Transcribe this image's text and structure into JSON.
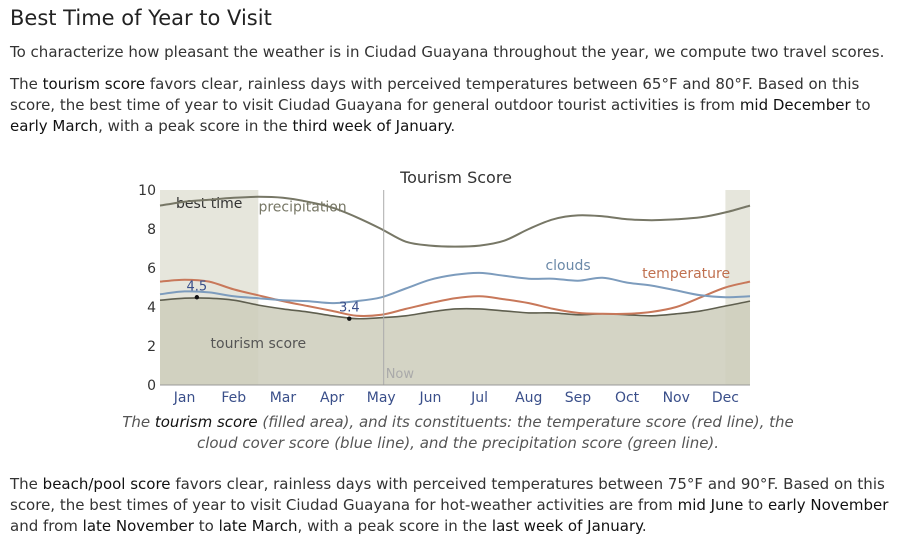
{
  "heading": "Best Time of Year to Visit",
  "intro": "To characterize how pleasant the weather is in Ciudad Guayana throughout the year, we compute two travel scores.",
  "tourism_paragraph": {
    "t1": "The ",
    "h1": "tourism score",
    "t2": " favors clear, rainless days with perceived temperatures between 65°F and 80°F. Based on this score, the best time of year to visit Ciudad Guayana for general outdoor tourist activities is from ",
    "h2": "mid December",
    "t3": " to ",
    "h3": "early March",
    "t4": ", with a peak score in the ",
    "h4": "third week of January",
    "t5": "."
  },
  "caption": {
    "t1": "The ",
    "h1": "tourism score",
    "t2": " (filled area), and its constituents: the temperature score (red line), the cloud cover score (blue line), and the precipitation score (green line)."
  },
  "beach_paragraph": {
    "t1": "The ",
    "h1": "beach/pool score",
    "t2": " favors clear, rainless days with perceived temperatures between 75°F and 90°F. Based on this score, the best times of year to visit Ciudad Guayana for hot-weather activities are from ",
    "h2": "mid June",
    "t3": " to ",
    "h3": "early November",
    "t4": " and from ",
    "h4": "late November",
    "t5": " to ",
    "h5": "late March",
    "t6": ", with a peak score in the ",
    "h6": "last week of January",
    "t7": "."
  },
  "chart_data": {
    "type": "area",
    "title": "Tourism Score",
    "x_type": "month-of-year",
    "x_ticks": [
      "Jan",
      "Feb",
      "Mar",
      "Apr",
      "May",
      "Jun",
      "Jul",
      "Aug",
      "Sep",
      "Oct",
      "Nov",
      "Dec"
    ],
    "ylim": [
      0,
      10
    ],
    "y_ticks": [
      0,
      2,
      4,
      6,
      8,
      10
    ],
    "x": [
      0,
      0.5,
      1,
      1.5,
      2,
      2.5,
      3,
      3.5,
      4,
      4.5,
      5,
      5.5,
      6,
      6.5,
      7,
      7.5,
      8,
      8.5,
      9,
      9.5,
      10,
      10.5,
      11,
      11.5,
      12
    ],
    "series": [
      {
        "name": "tourism score",
        "style": "filled-area",
        "color": "#cdcdbb",
        "values": [
          4.35,
          4.45,
          4.45,
          4.35,
          4.1,
          3.9,
          3.75,
          3.55,
          3.4,
          3.45,
          3.55,
          3.75,
          3.9,
          3.9,
          3.8,
          3.7,
          3.7,
          3.6,
          3.65,
          3.6,
          3.55,
          3.65,
          3.8,
          4.05,
          4.3
        ]
      },
      {
        "name": "temperature",
        "style": "line",
        "color": "#c8785a",
        "values": [
          5.3,
          5.4,
          5.3,
          4.9,
          4.6,
          4.3,
          4.05,
          3.8,
          3.55,
          3.6,
          3.9,
          4.2,
          4.45,
          4.55,
          4.4,
          4.2,
          3.9,
          3.7,
          3.65,
          3.65,
          3.75,
          4.0,
          4.5,
          5.0,
          5.3
        ]
      },
      {
        "name": "clouds",
        "style": "line",
        "color": "#7d9cbd",
        "values": [
          4.65,
          4.8,
          4.75,
          4.55,
          4.45,
          4.35,
          4.3,
          4.2,
          4.3,
          4.5,
          4.95,
          5.4,
          5.65,
          5.75,
          5.6,
          5.45,
          5.45,
          5.35,
          5.5,
          5.25,
          5.1,
          4.85,
          4.6,
          4.5,
          4.55
        ]
      },
      {
        "name": "precipitation",
        "style": "line",
        "color": "#777766",
        "values": [
          9.2,
          9.4,
          9.5,
          9.6,
          9.65,
          9.6,
          9.4,
          9.1,
          8.6,
          8.0,
          7.35,
          7.15,
          7.1,
          7.15,
          7.4,
          8.0,
          8.5,
          8.7,
          8.65,
          8.5,
          8.45,
          8.5,
          8.6,
          8.85,
          9.2
        ]
      }
    ],
    "highlight_bands": [
      {
        "label": "best time",
        "start": 0,
        "end": 2.0
      },
      {
        "label": "",
        "start": 11.5,
        "end": 12
      }
    ],
    "annotations": [
      {
        "label": "4.5",
        "x": 0.75,
        "y": 4.5
      },
      {
        "label": "3.4",
        "x": 3.85,
        "y": 3.4
      }
    ],
    "now_marker": {
      "label": "Now",
      "x": 4.55
    },
    "grid": false,
    "legend": "inline labels on lines"
  }
}
